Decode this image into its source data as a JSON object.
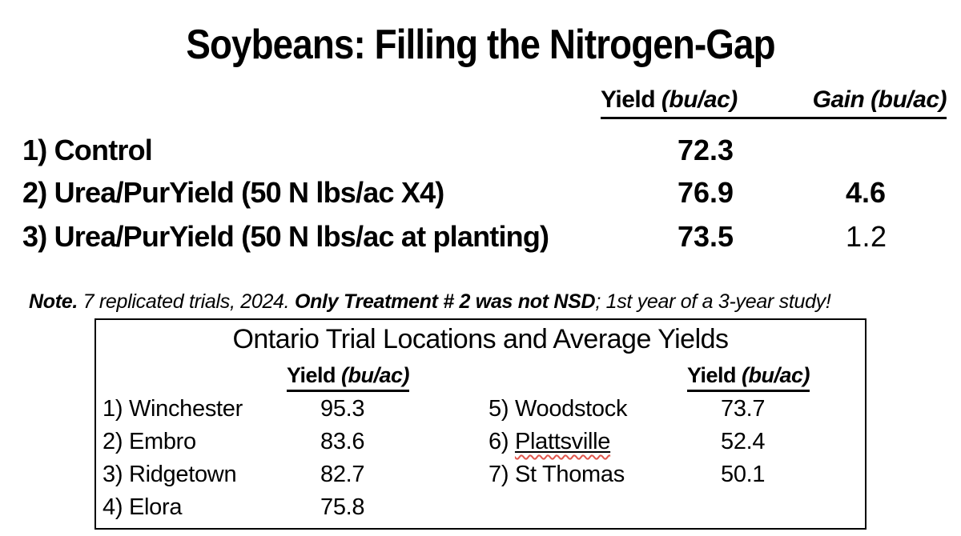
{
  "slide": {
    "title": "Soybeans: Filling the Nitrogen-Gap",
    "background_color": "#ffffff",
    "text_color": "#000000"
  },
  "treatment_table": {
    "headers": {
      "yield_label": "Yield",
      "yield_unit": "(bu/ac)",
      "gain_label": "Gain",
      "gain_unit": "(bu/ac)"
    },
    "rows": [
      {
        "label": "1) Control",
        "yield": "72.3",
        "gain": ""
      },
      {
        "label": "2) Urea/PurYield (50 N lbs/ac X4)",
        "yield": "76.9",
        "gain": "4.6"
      },
      {
        "label": "3) Urea/PurYield (50 N lbs/ac at planting)",
        "yield": "73.5",
        "gain": "1.2"
      }
    ]
  },
  "note": {
    "lead": "Note.",
    "text_1": " 7 replicated trials, 2024. ",
    "emphasis": "Only Treatment # 2 was not NSD",
    "text_2": "; 1st year of a 3-year study!"
  },
  "locations_box": {
    "title": "Ontario Trial Locations and Average Yields",
    "left_header_label": "Yield",
    "left_header_unit": "(bu/ac)",
    "right_header_label": "Yield",
    "right_header_unit": "(bu/ac)",
    "left_rows": [
      {
        "label": "1) Winchester",
        "value": "95.3"
      },
      {
        "label": "2) Embro",
        "value": "83.6"
      },
      {
        "label": "3) Ridgetown",
        "value": "82.7"
      },
      {
        "label": "4) Elora",
        "value": "75.8"
      }
    ],
    "right_rows": [
      {
        "label": "5) Woodstock",
        "value": "73.7"
      },
      {
        "label_prefix": "6) ",
        "flagged_word": "Plattsville",
        "value": "52.4"
      },
      {
        "label": "7) St Thomas",
        "value": "50.1"
      }
    ]
  },
  "colors": {
    "spellcheck_squiggle": "#e2574d",
    "border": "#000000"
  }
}
